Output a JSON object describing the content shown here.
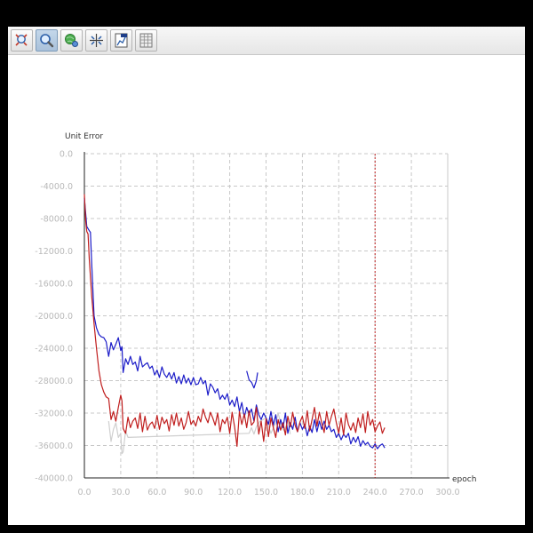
{
  "toolbar": {
    "buttons": [
      {
        "icon": "zoom-region-icon",
        "active": false
      },
      {
        "icon": "magnifier-icon",
        "active": true
      },
      {
        "icon": "pan-globe-icon",
        "active": false
      },
      {
        "icon": "fit-axes-icon",
        "active": false
      },
      {
        "icon": "export-chart-icon",
        "active": false
      },
      {
        "icon": "data-table-icon",
        "active": false
      }
    ]
  },
  "colors": {
    "blue": "#1c1cc8",
    "red": "#c01e1e",
    "lightgray": "#cfcfcf",
    "marker": "#c01e1e",
    "grid": "#c8c8c8",
    "tick_text": "#b9b9b9"
  },
  "chart_data": {
    "type": "line",
    "title": "",
    "xlabel": "epoch",
    "ylabel": "Unit Error",
    "xlim": [
      0,
      300
    ],
    "ylim": [
      -40000,
      0
    ],
    "xticks": [
      "0.0",
      "30.0",
      "60.0",
      "90.0",
      "120.0",
      "150.0",
      "180.0",
      "210.0",
      "240.0",
      "270.0",
      "300.0"
    ],
    "yticks": [
      "0.0",
      "-4000.0",
      "-8000.0",
      "-12000.0",
      "-16000.0",
      "-20000.0",
      "-24000.0",
      "-28000.0",
      "-32000.0",
      "-36000.0",
      "-40000.0"
    ],
    "grid": true,
    "marker_x": 240,
    "series": [
      {
        "color": "lightgray",
        "points": [
          [
            20,
            -33000
          ],
          [
            22,
            -35500
          ],
          [
            24,
            -34000
          ],
          [
            26,
            -33200
          ],
          [
            28,
            -35000
          ],
          [
            30,
            -34500
          ],
          [
            31,
            -37000
          ],
          [
            32,
            -36800
          ],
          [
            34,
            -34200
          ],
          [
            36,
            -35000
          ],
          [
            136,
            -34500
          ],
          [
            138,
            -33800
          ],
          [
            140,
            -34600
          ],
          [
            142,
            -33700
          ],
          [
            145,
            -33000
          ],
          [
            150,
            -32600
          ],
          [
            154,
            -34500
          ],
          [
            158,
            -33200
          ],
          [
            160,
            -32000
          ],
          [
            163,
            -33800
          ],
          [
            165,
            -34200
          ],
          [
            168,
            -33000
          ],
          [
            170,
            -34600
          ]
        ]
      },
      {
        "color": "blue",
        "points": [
          [
            0,
            -5500
          ],
          [
            2,
            -9000
          ],
          [
            4,
            -9500
          ],
          [
            5,
            -9700
          ],
          [
            6,
            -13500
          ],
          [
            8,
            -20000
          ],
          [
            10,
            -21500
          ],
          [
            12,
            -22300
          ],
          [
            14,
            -22600
          ],
          [
            16,
            -22700
          ],
          [
            18,
            -23200
          ],
          [
            20,
            -25000
          ],
          [
            22,
            -23300
          ],
          [
            24,
            -24200
          ],
          [
            26,
            -23500
          ],
          [
            28,
            -22700
          ],
          [
            30,
            -24300
          ],
          [
            31,
            -23800
          ],
          [
            32,
            -27000
          ],
          [
            34,
            -25300
          ],
          [
            36,
            -26000
          ],
          [
            38,
            -25000
          ],
          [
            40,
            -26000
          ],
          [
            42,
            -25700
          ],
          [
            44,
            -26800
          ],
          [
            46,
            -25000
          ],
          [
            48,
            -26300
          ],
          [
            50,
            -26000
          ],
          [
            52,
            -25800
          ],
          [
            54,
            -26500
          ],
          [
            56,
            -26200
          ],
          [
            58,
            -27300
          ],
          [
            60,
            -26700
          ],
          [
            62,
            -27600
          ],
          [
            64,
            -26300
          ],
          [
            66,
            -27200
          ],
          [
            68,
            -27600
          ],
          [
            70,
            -27000
          ],
          [
            72,
            -27800
          ],
          [
            74,
            -27000
          ],
          [
            76,
            -28300
          ],
          [
            78,
            -27500
          ],
          [
            80,
            -28400
          ],
          [
            82,
            -27300
          ],
          [
            84,
            -28300
          ],
          [
            86,
            -27700
          ],
          [
            88,
            -28500
          ],
          [
            90,
            -27600
          ],
          [
            92,
            -28500
          ],
          [
            94,
            -28400
          ],
          [
            96,
            -27600
          ],
          [
            98,
            -28400
          ],
          [
            100,
            -28000
          ],
          [
            102,
            -29800
          ],
          [
            104,
            -28400
          ],
          [
            106,
            -28800
          ],
          [
            108,
            -29500
          ],
          [
            110,
            -29000
          ],
          [
            112,
            -30300
          ],
          [
            114,
            -29800
          ],
          [
            116,
            -30300
          ],
          [
            118,
            -29600
          ],
          [
            120,
            -31000
          ],
          [
            122,
            -30400
          ],
          [
            124,
            -31200
          ],
          [
            126,
            -30000
          ],
          [
            128,
            -31800
          ],
          [
            130,
            -30700
          ],
          [
            132,
            -32500
          ],
          [
            134,
            -31300
          ],
          [
            136,
            -32200
          ],
          [
            138,
            -31500
          ],
          [
            140,
            -33000
          ],
          [
            142,
            -31000
          ],
          [
            144,
            -32200
          ],
          [
            146,
            -32800
          ],
          [
            148,
            -32000
          ],
          [
            150,
            -32600
          ],
          [
            152,
            -33400
          ],
          [
            154,
            -31800
          ],
          [
            156,
            -33500
          ],
          [
            158,
            -32200
          ],
          [
            160,
            -34300
          ],
          [
            162,
            -32800
          ],
          [
            164,
            -33800
          ],
          [
            166,
            -32000
          ],
          [
            168,
            -34500
          ],
          [
            170,
            -33200
          ],
          [
            172,
            -34000
          ],
          [
            174,
            -32500
          ],
          [
            176,
            -34300
          ],
          [
            178,
            -33200
          ],
          [
            180,
            -34000
          ],
          [
            182,
            -33400
          ],
          [
            184,
            -34800
          ],
          [
            186,
            -33600
          ],
          [
            188,
            -34400
          ],
          [
            190,
            -32800
          ],
          [
            192,
            -34300
          ],
          [
            194,
            -33000
          ],
          [
            196,
            -34000
          ],
          [
            198,
            -33000
          ],
          [
            200,
            -34000
          ],
          [
            202,
            -33500
          ],
          [
            204,
            -34300
          ],
          [
            206,
            -34000
          ],
          [
            208,
            -35000
          ],
          [
            210,
            -34500
          ],
          [
            212,
            -35300
          ],
          [
            214,
            -34600
          ],
          [
            216,
            -35000
          ],
          [
            218,
            -34500
          ],
          [
            220,
            -35800
          ],
          [
            222,
            -35000
          ],
          [
            224,
            -35600
          ],
          [
            226,
            -34900
          ],
          [
            228,
            -36100
          ],
          [
            230,
            -35400
          ],
          [
            232,
            -35900
          ],
          [
            234,
            -35600
          ],
          [
            236,
            -36100
          ],
          [
            238,
            -36300
          ],
          [
            240,
            -35800
          ],
          [
            242,
            -36400
          ],
          [
            244,
            -36000
          ],
          [
            246,
            -35800
          ],
          [
            248,
            -36300
          ]
        ]
      },
      {
        "color": "blue",
        "points": [
          [
            134,
            -26800
          ],
          [
            136,
            -27900
          ],
          [
            138,
            -28200
          ],
          [
            140,
            -28900
          ],
          [
            142,
            -28000
          ],
          [
            143,
            -27000
          ]
        ]
      },
      {
        "color": "red",
        "points": [
          [
            0,
            -5000
          ],
          [
            1,
            -8200
          ],
          [
            2,
            -9600
          ],
          [
            3,
            -9900
          ],
          [
            4,
            -13000
          ],
          [
            6,
            -17500
          ],
          [
            8,
            -21000
          ],
          [
            10,
            -24000
          ],
          [
            12,
            -26800
          ],
          [
            14,
            -28500
          ],
          [
            16,
            -29400
          ],
          [
            18,
            -30000
          ],
          [
            20,
            -30200
          ],
          [
            22,
            -32800
          ],
          [
            24,
            -31800
          ],
          [
            26,
            -33000
          ],
          [
            28,
            -31300
          ],
          [
            30,
            -29800
          ],
          [
            31,
            -30500
          ],
          [
            32,
            -33900
          ],
          [
            34,
            -34500
          ],
          [
            36,
            -32500
          ],
          [
            38,
            -33800
          ],
          [
            40,
            -33000
          ],
          [
            42,
            -32600
          ],
          [
            44,
            -33900
          ],
          [
            46,
            -32000
          ],
          [
            48,
            -34300
          ],
          [
            50,
            -32400
          ],
          [
            52,
            -34100
          ],
          [
            54,
            -33400
          ],
          [
            56,
            -33100
          ],
          [
            58,
            -33900
          ],
          [
            60,
            -32300
          ],
          [
            62,
            -34000
          ],
          [
            64,
            -32500
          ],
          [
            66,
            -33300
          ],
          [
            68,
            -32800
          ],
          [
            70,
            -34200
          ],
          [
            72,
            -32200
          ],
          [
            74,
            -33500
          ],
          [
            76,
            -32000
          ],
          [
            78,
            -33600
          ],
          [
            80,
            -32600
          ],
          [
            82,
            -34000
          ],
          [
            84,
            -33200
          ],
          [
            86,
            -31800
          ],
          [
            88,
            -33400
          ],
          [
            90,
            -32900
          ],
          [
            92,
            -33600
          ],
          [
            94,
            -32400
          ],
          [
            96,
            -33100
          ],
          [
            98,
            -31500
          ],
          [
            100,
            -32500
          ],
          [
            102,
            -33200
          ],
          [
            104,
            -31900
          ],
          [
            106,
            -32600
          ],
          [
            108,
            -33500
          ],
          [
            110,
            -32000
          ],
          [
            112,
            -34300
          ],
          [
            114,
            -32800
          ],
          [
            116,
            -33300
          ],
          [
            118,
            -32500
          ],
          [
            120,
            -34500
          ],
          [
            122,
            -31900
          ],
          [
            124,
            -33700
          ],
          [
            126,
            -36100
          ],
          [
            128,
            -31800
          ],
          [
            130,
            -33400
          ],
          [
            132,
            -32100
          ],
          [
            134,
            -33800
          ],
          [
            136,
            -31700
          ],
          [
            138,
            -33500
          ],
          [
            140,
            -33100
          ],
          [
            142,
            -31300
          ],
          [
            144,
            -34600
          ],
          [
            146,
            -33000
          ],
          [
            148,
            -35500
          ],
          [
            150,
            -32700
          ],
          [
            152,
            -34900
          ],
          [
            154,
            -32600
          ],
          [
            156,
            -33800
          ],
          [
            158,
            -35000
          ],
          [
            160,
            -32800
          ],
          [
            162,
            -34100
          ],
          [
            164,
            -33200
          ],
          [
            166,
            -34700
          ],
          [
            168,
            -32400
          ],
          [
            170,
            -33700
          ],
          [
            172,
            -31900
          ],
          [
            174,
            -33500
          ],
          [
            176,
            -34300
          ],
          [
            178,
            -33100
          ],
          [
            180,
            -32400
          ],
          [
            182,
            -33900
          ],
          [
            184,
            -31700
          ],
          [
            186,
            -34200
          ],
          [
            188,
            -32800
          ],
          [
            190,
            -31300
          ],
          [
            192,
            -33600
          ],
          [
            194,
            -31900
          ],
          [
            196,
            -33200
          ],
          [
            198,
            -34400
          ],
          [
            200,
            -31800
          ],
          [
            202,
            -33500
          ],
          [
            204,
            -32400
          ],
          [
            206,
            -31500
          ],
          [
            208,
            -33200
          ],
          [
            210,
            -34500
          ],
          [
            212,
            -32600
          ],
          [
            214,
            -34700
          ],
          [
            216,
            -32000
          ],
          [
            218,
            -33400
          ],
          [
            220,
            -34100
          ],
          [
            222,
            -33200
          ],
          [
            224,
            -34400
          ],
          [
            226,
            -32600
          ],
          [
            228,
            -33800
          ],
          [
            230,
            -32100
          ],
          [
            232,
            -34400
          ],
          [
            234,
            -31800
          ],
          [
            236,
            -33500
          ],
          [
            238,
            -32800
          ],
          [
            240,
            -34300
          ],
          [
            242,
            -33600
          ],
          [
            244,
            -33100
          ],
          [
            246,
            -34500
          ],
          [
            248,
            -33800
          ]
        ]
      }
    ]
  }
}
